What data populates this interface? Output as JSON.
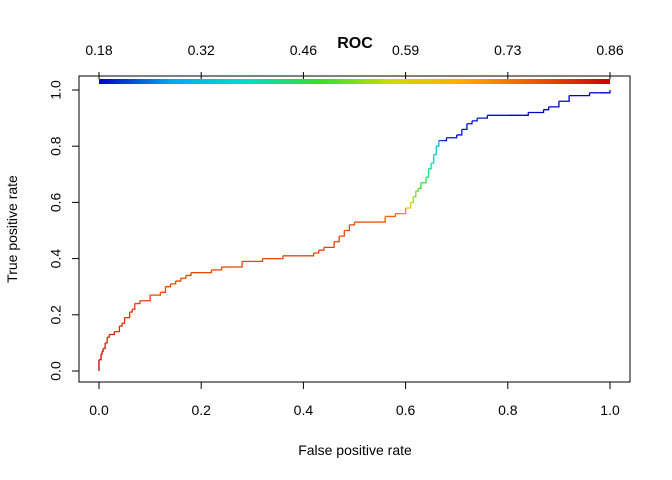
{
  "chart_data": {
    "type": "line",
    "title": "ROC",
    "xlabel": "False positive rate",
    "ylabel": "True positive rate",
    "xlim": [
      0,
      1
    ],
    "ylim": [
      0,
      1
    ],
    "x_ticks": [
      "0.0",
      "0.2",
      "0.4",
      "0.6",
      "0.8",
      "1.0"
    ],
    "y_ticks": [
      "0.0",
      "0.2",
      "0.4",
      "0.6",
      "0.8",
      "1.0"
    ],
    "grid": false,
    "colorbar": {
      "placement": "top",
      "ticks": [
        "0.18",
        "0.32",
        "0.46",
        "0.59",
        "0.73",
        "0.86"
      ],
      "range": [
        0.18,
        0.86
      ],
      "colormap": [
        "#0000CC",
        "#00AAEE",
        "#00DDCC",
        "#33DD33",
        "#CCDD00",
        "#FFAA00",
        "#EE5500",
        "#CC0000"
      ]
    },
    "series": [
      {
        "x": [
          0.0,
          0.0,
          0.004,
          0.006,
          0.008,
          0.012,
          0.016,
          0.02,
          0.03,
          0.04,
          0.045,
          0.05,
          0.06,
          0.065,
          0.07,
          0.08,
          0.1,
          0.12,
          0.13,
          0.14,
          0.15,
          0.16,
          0.17,
          0.18,
          0.2,
          0.22,
          0.24,
          0.26,
          0.28,
          0.3,
          0.32,
          0.36,
          0.4,
          0.42,
          0.43,
          0.44,
          0.46,
          0.47,
          0.48,
          0.49,
          0.5,
          0.52,
          0.54,
          0.56,
          0.58,
          0.59,
          0.6,
          0.61,
          0.615,
          0.62,
          0.625,
          0.63,
          0.64,
          0.645,
          0.65,
          0.655,
          0.66,
          0.665,
          0.67,
          0.675,
          0.68,
          0.7,
          0.71,
          0.72,
          0.73,
          0.74,
          0.76,
          0.8,
          0.84,
          0.87,
          0.88,
          0.9,
          0.92,
          0.96,
          0.98,
          1.0
        ],
        "y": [
          0.0,
          0.04,
          0.06,
          0.07,
          0.08,
          0.1,
          0.12,
          0.13,
          0.14,
          0.16,
          0.17,
          0.19,
          0.21,
          0.22,
          0.24,
          0.25,
          0.27,
          0.28,
          0.3,
          0.31,
          0.32,
          0.33,
          0.34,
          0.35,
          0.35,
          0.36,
          0.37,
          0.37,
          0.39,
          0.39,
          0.4,
          0.41,
          0.41,
          0.42,
          0.43,
          0.44,
          0.46,
          0.48,
          0.5,
          0.52,
          0.53,
          0.53,
          0.53,
          0.55,
          0.56,
          0.56,
          0.58,
          0.6,
          0.62,
          0.64,
          0.65,
          0.67,
          0.69,
          0.72,
          0.74,
          0.77,
          0.8,
          0.82,
          0.82,
          0.82,
          0.83,
          0.84,
          0.86,
          0.88,
          0.89,
          0.9,
          0.91,
          0.91,
          0.92,
          0.93,
          0.94,
          0.96,
          0.98,
          0.99,
          0.99,
          1.0
        ],
        "cutoff": [
          0.86,
          0.85,
          0.84,
          0.84,
          0.83,
          0.83,
          0.82,
          0.82,
          0.81,
          0.81,
          0.81,
          0.8,
          0.8,
          0.79,
          0.79,
          0.79,
          0.78,
          0.78,
          0.78,
          0.78,
          0.78,
          0.78,
          0.78,
          0.78,
          0.78,
          0.78,
          0.78,
          0.78,
          0.78,
          0.78,
          0.78,
          0.78,
          0.78,
          0.78,
          0.78,
          0.78,
          0.78,
          0.78,
          0.78,
          0.78,
          0.78,
          0.77,
          0.76,
          0.74,
          0.72,
          0.7,
          0.6,
          0.55,
          0.52,
          0.5,
          0.47,
          0.45,
          0.42,
          0.4,
          0.37,
          0.34,
          0.3,
          0.22,
          0.2,
          0.2,
          0.19,
          0.19,
          0.19,
          0.19,
          0.19,
          0.19,
          0.19,
          0.18,
          0.18,
          0.18,
          0.18,
          0.18,
          0.18,
          0.18,
          0.18,
          0.18
        ]
      }
    ]
  }
}
